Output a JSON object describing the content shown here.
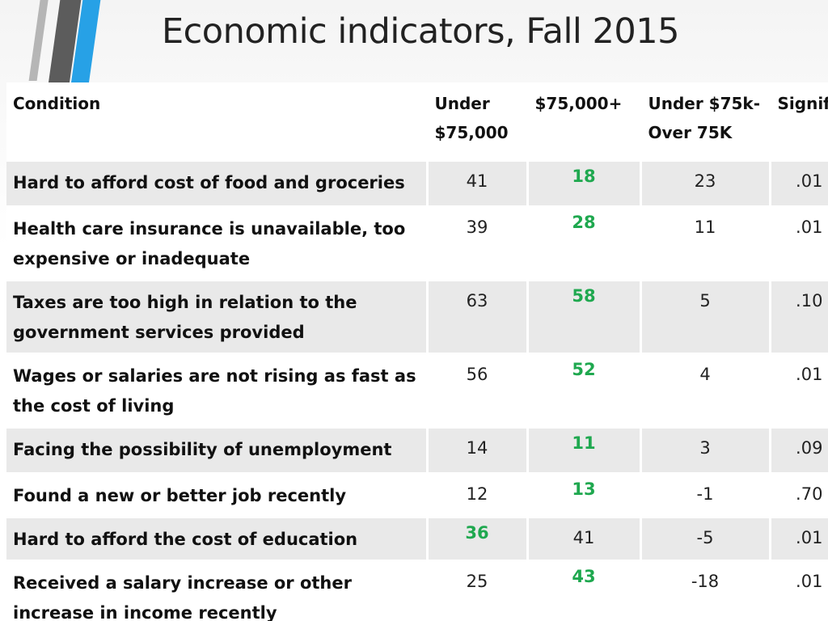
{
  "title": "Economic indicators, Fall 2015",
  "colors": {
    "highlight": "#1fa84f",
    "stripe_gray": "#5c5c5c",
    "stripe_blue": "#27a1e6",
    "row_shade": "#e9e9e9"
  },
  "table": {
    "headers": [
      "Condition",
      "Under $75,000",
      "$75,000+",
      "Under $75k-Over 75K",
      "Signif"
    ],
    "rows": [
      {
        "condition": "Hard to afford cost of food and groceries",
        "under75": "41",
        "over75": "18",
        "diff": "23",
        "signif": ".01",
        "highlight": "over75"
      },
      {
        "condition": "Health care insurance is unavailable, too expensive or inadequate",
        "under75": "39",
        "over75": "28",
        "diff": "11",
        "signif": ".01",
        "highlight": "over75"
      },
      {
        "condition": "Taxes are too high in relation to the government services provided",
        "under75": "63",
        "over75": "58",
        "diff": "5",
        "signif": ".10",
        "highlight": "over75"
      },
      {
        "condition": "Wages or salaries are not rising as fast as the cost of living",
        "under75": "56",
        "over75": "52",
        "diff": "4",
        "signif": ".01",
        "highlight": "over75"
      },
      {
        "condition": "Facing the possibility of unemployment",
        "under75": "14",
        "over75": "11",
        "diff": "3",
        "signif": ".09",
        "highlight": "over75"
      },
      {
        "condition": "Found a new or better job recently",
        "under75": "12",
        "over75": "13",
        "diff": "-1",
        "signif": ".70",
        "highlight": "over75"
      },
      {
        "condition": "Hard to afford the cost of education",
        "under75": "36",
        "over75": "41",
        "diff": "-5",
        "signif": ".01",
        "highlight": "under75"
      },
      {
        "condition": "Received a salary increase or other increase in income recently",
        "under75": "25",
        "over75": "43",
        "diff": "-18",
        "signif": ".01",
        "highlight": "over75"
      }
    ]
  }
}
